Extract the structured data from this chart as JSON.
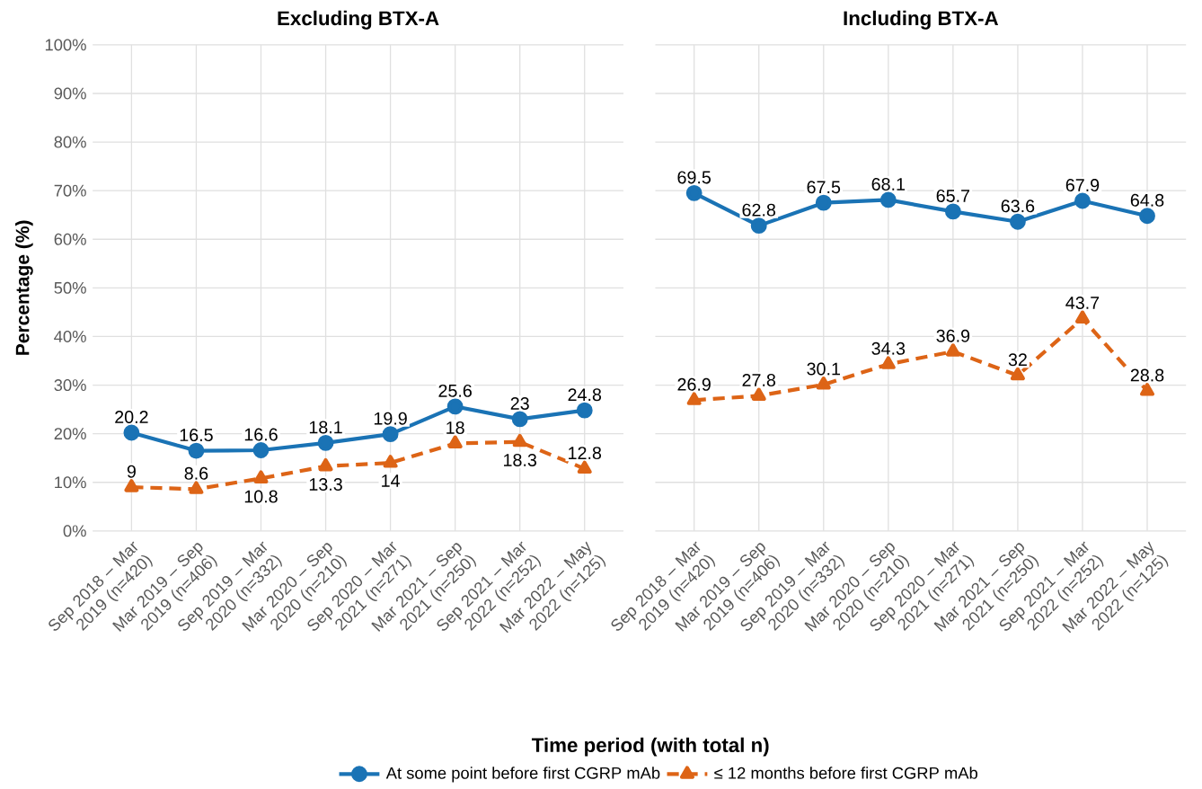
{
  "chart_data": [
    {
      "type": "line",
      "title": "Excluding BTX-A",
      "ylabel": "Percentage (%)",
      "xlabel": "Time period (with total n)",
      "categories": [
        "Sep 2018 – Mar 2019 (n=420)",
        "Mar 2019 – Sep 2019 (n=406)",
        "Sep 2019 – Mar 2020 (n=332)",
        "Mar 2020 – Sep 2020 (n=210)",
        "Sep 2020 – Mar 2021 (n=271)",
        "Mar 2021 – Sep 2021 (n=250)",
        "Sep 2021 – Mar 2022 (n=252)",
        "Mar 2022 – May 2022 (n=125)"
      ],
      "series": [
        {
          "name": "At some point before first CGRP mAb",
          "color": "#1a73b5",
          "marker": "circle",
          "line_style": "solid",
          "values": [
            20.2,
            16.5,
            16.6,
            18.1,
            19.9,
            25.6,
            23,
            24.8
          ]
        },
        {
          "name": "≤ 12 months before first CGRP mAb",
          "color": "#dd6416",
          "marker": "triangle",
          "line_style": "dashed",
          "values": [
            9,
            8.6,
            10.8,
            13.3,
            14,
            18,
            18.3,
            12.8
          ]
        }
      ],
      "ylim": [
        0,
        100
      ],
      "yticks": [
        {
          "value": 0,
          "label": "0%"
        },
        {
          "value": 10,
          "label": "10%"
        },
        {
          "value": 20,
          "label": "20%"
        },
        {
          "value": 30,
          "label": "30%"
        },
        {
          "value": 40,
          "label": "40%"
        },
        {
          "value": 50,
          "label": "50%"
        },
        {
          "value": 60,
          "label": "60%"
        },
        {
          "value": 70,
          "label": "70%"
        },
        {
          "value": 80,
          "label": "80%"
        },
        {
          "value": 90,
          "label": "90%"
        },
        {
          "value": 100,
          "label": "100%"
        }
      ],
      "grid": true,
      "legend": "bottom",
      "data_labels": true
    },
    {
      "type": "line",
      "title": "Including BTX-A",
      "categories": [
        "Sep 2018 – Mar 2019 (n=420)",
        "Mar 2019 – Sep 2019 (n=406)",
        "Sep 2019 – Mar 2020 (n=332)",
        "Mar 2020 – Sep 2020 (n=210)",
        "Sep 2020 – Mar 2021 (n=271)",
        "Mar 2021 – Sep 2021 (n=250)",
        "Sep 2021 – Mar 2022 (n=252)",
        "Mar 2022 – May 2022 (n=125)"
      ],
      "series": [
        {
          "color": "#1a73b5",
          "marker": "circle",
          "line_style": "solid",
          "values": [
            69.5,
            62.8,
            67.5,
            68.1,
            65.7,
            63.6,
            67.9,
            64.8
          ]
        },
        {
          "color": "#dd6416",
          "marker": "triangle",
          "line_style": "dashed",
          "values": [
            26.9,
            27.8,
            30.1,
            34.3,
            36.9,
            32,
            43.7,
            28.8
          ]
        }
      ],
      "ylim": [
        0,
        100
      ],
      "yticks": [
        {
          "value": 0,
          "label": null
        },
        {
          "value": 10,
          "label": null
        },
        {
          "value": 20,
          "label": null
        },
        {
          "value": 30,
          "label": null
        },
        {
          "value": 40,
          "label": null
        },
        {
          "value": 50,
          "label": null
        },
        {
          "value": 60,
          "label": null
        },
        {
          "value": 70,
          "label": null
        },
        {
          "value": 80,
          "label": null
        },
        {
          "value": 90,
          "label": null
        },
        {
          "value": 100,
          "label": null
        }
      ],
      "grid": true,
      "tick_labels": "x",
      "data_labels": true
    }
  ]
}
